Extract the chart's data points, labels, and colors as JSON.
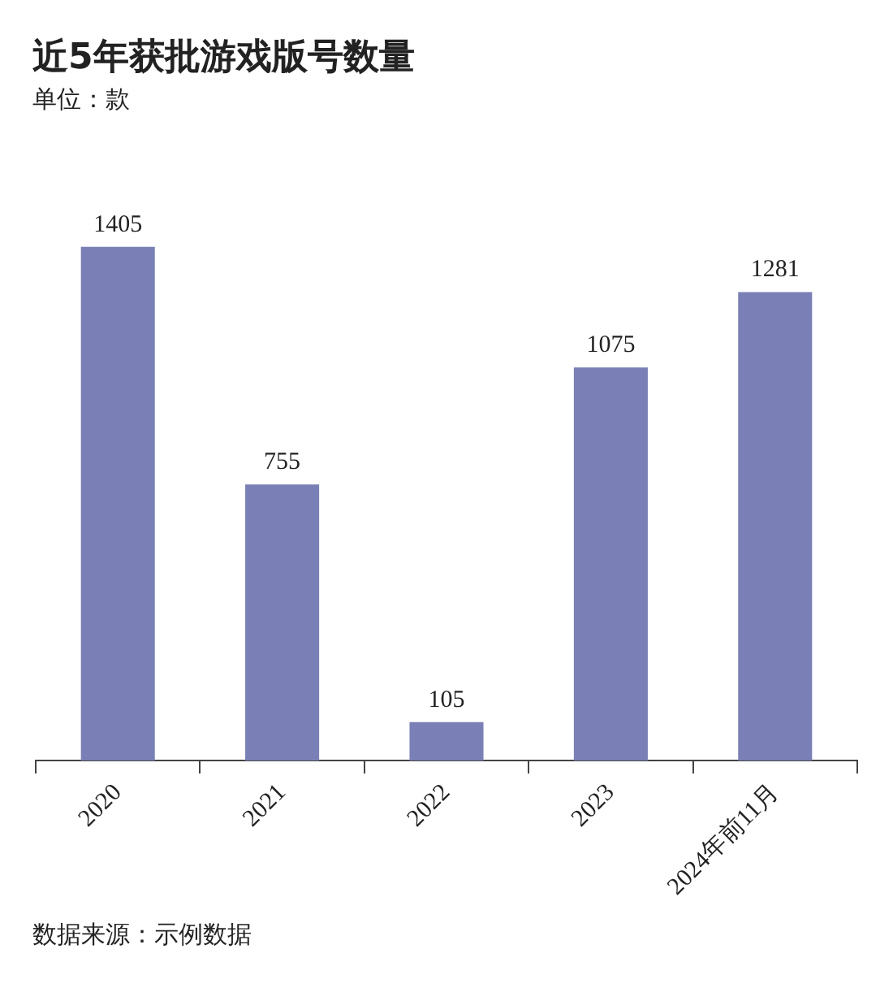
{
  "chart_data": {
    "type": "bar",
    "title": "近5年获批游戏版号数量",
    "subtitle": "单位：款",
    "categories": [
      "2020",
      "2021",
      "2022",
      "2023",
      "2024年前11月"
    ],
    "values": [
      1405,
      755,
      105,
      1075,
      1281
    ],
    "color": "#7a80b6",
    "data_labels": true,
    "annotations": [
      "数据来源：示例数据"
    ]
  }
}
